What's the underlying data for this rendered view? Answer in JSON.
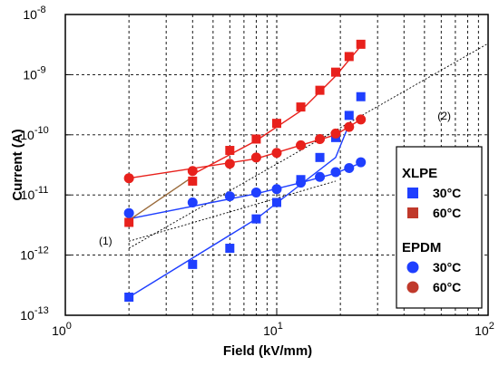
{
  "chart_data": {
    "type": "scatter",
    "xlabel": "Field (kV/mm)",
    "ylabel": "Current (A)",
    "x_scale": "log",
    "y_scale": "log",
    "xlim": [
      1,
      100
    ],
    "ylim": [
      1e-13,
      1e-08
    ],
    "grid": true,
    "x_ticks": [
      {
        "value": 1,
        "mantissa": "10",
        "exp": "0"
      },
      {
        "value": 10,
        "mantissa": "10",
        "exp": "1"
      },
      {
        "value": 100,
        "mantissa": "10",
        "exp": "2"
      }
    ],
    "y_ticks": [
      {
        "value": 1e-13,
        "mantissa": "10",
        "exp": "-13"
      },
      {
        "value": 1e-12,
        "mantissa": "10",
        "exp": "-12"
      },
      {
        "value": 1e-11,
        "mantissa": "10",
        "exp": "-11"
      },
      {
        "value": 1e-10,
        "mantissa": "10",
        "exp": "-10"
      },
      {
        "value": 1e-09,
        "mantissa": "10",
        "exp": "-9"
      },
      {
        "value": 1e-08,
        "mantissa": "10",
        "exp": "-8"
      }
    ],
    "legend": {
      "placement": "right",
      "groups": [
        {
          "title": "XLPE",
          "entries": [
            {
              "label": "30°C",
              "marker": "square",
              "color": "#1f3fff"
            },
            {
              "label": "60°C",
              "marker": "square",
              "color": "#c0392b"
            }
          ]
        },
        {
          "title": "EPDM",
          "entries": [
            {
              "label": "30°C",
              "marker": "circle",
              "color": "#1f3fff"
            },
            {
              "label": "60°C",
              "marker": "circle",
              "color": "#c0392b"
            }
          ]
        }
      ]
    },
    "series": [
      {
        "material": "XLPE",
        "temperature": "30°C",
        "marker": "square",
        "color": "#1f3fff",
        "x": [
          2,
          4,
          6,
          8,
          10,
          13,
          16,
          19,
          22,
          25
        ],
        "y": [
          2e-13,
          7e-13,
          1.3e-12,
          4e-12,
          7.5e-12,
          1.8e-11,
          4.2e-11,
          9e-11,
          2.1e-10,
          4.3e-10
        ]
      },
      {
        "material": "XLPE",
        "temperature": "60°C",
        "marker": "square",
        "color": "#e8211c",
        "x": [
          2,
          4,
          6,
          8,
          10,
          13,
          16,
          19,
          22,
          25
        ],
        "y": [
          3.5e-12,
          1.7e-11,
          5.5e-11,
          8.5e-11,
          1.55e-10,
          2.9e-10,
          5.5e-10,
          1.1e-09,
          2e-09,
          3.2e-09
        ]
      },
      {
        "material": "EPDM",
        "temperature": "30°C",
        "marker": "circle",
        "color": "#1f3fff",
        "x": [
          2,
          4,
          6,
          8,
          10,
          13,
          16,
          19,
          22,
          25
        ],
        "y": [
          5e-12,
          7.5e-12,
          9.5e-12,
          1.1e-11,
          1.25e-11,
          1.6e-11,
          2e-11,
          2.4e-11,
          2.8e-11,
          3.5e-11
        ]
      },
      {
        "material": "EPDM",
        "temperature": "60°C",
        "marker": "circle",
        "color": "#e8211c",
        "x": [
          2,
          4,
          6,
          8,
          10,
          13,
          16,
          19,
          22,
          25
        ],
        "y": [
          1.9e-11,
          2.5e-11,
          3.3e-11,
          4.2e-11,
          5e-11,
          6.7e-11,
          8.5e-11,
          1.05e-10,
          1.35e-10,
          1.8e-10
        ]
      }
    ],
    "fit_lines": [
      {
        "color": "#1f3fff",
        "points": [
          [
            2,
            2e-13
          ],
          [
            8,
            4e-12
          ],
          [
            13,
            1.5e-11
          ],
          [
            19,
            4.2e-11
          ],
          [
            22,
            1.5e-10
          ]
        ]
      },
      {
        "color": "#1f3fff",
        "points": [
          [
            2,
            4e-12
          ],
          [
            8,
            1.05e-11
          ],
          [
            13,
            1.6e-11
          ],
          [
            19,
            2.3e-11
          ],
          [
            25,
            3.4e-11
          ]
        ]
      },
      {
        "color": "#e8211c",
        "points": [
          [
            2,
            1.9e-11
          ],
          [
            8,
            4e-11
          ],
          [
            13,
            6.7e-11
          ],
          [
            19,
            1e-10
          ],
          [
            25,
            1.8e-10
          ]
        ]
      },
      {
        "color": "#e8211c",
        "points": [
          [
            4,
            2.2e-11
          ],
          [
            8,
            8e-11
          ],
          [
            13,
            2.5e-10
          ],
          [
            19,
            9.5e-10
          ],
          [
            25,
            3e-09
          ]
        ]
      },
      {
        "color": "#9a6a3a",
        "points": [
          [
            2,
            3.8e-12
          ],
          [
            4,
            2e-11
          ]
        ]
      }
    ],
    "reference_lines": [
      {
        "label": "(1)",
        "slope": 1,
        "points": [
          [
            2,
            1.7e-12
          ],
          [
            19,
            1.7e-11
          ]
        ],
        "label_at": [
          1.55,
          1.5e-12
        ]
      },
      {
        "label": "(2)",
        "slope": 2,
        "points": [
          [
            2,
            1.3e-12
          ],
          [
            100,
            3.3e-09
          ]
        ],
        "label_at": [
          62,
          1.8e-10
        ]
      }
    ]
  }
}
